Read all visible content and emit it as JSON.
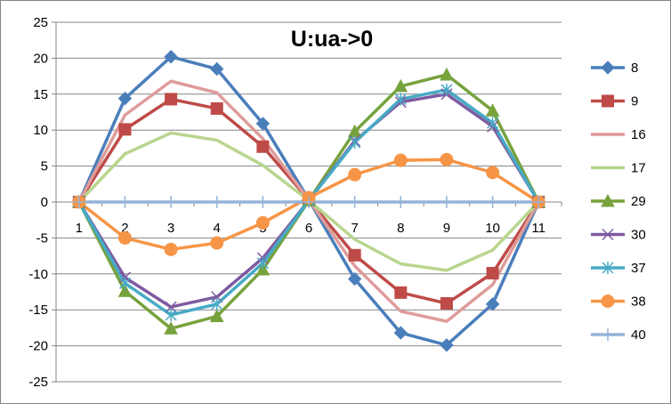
{
  "chart_data": {
    "type": "line",
    "title": "U:ua->0",
    "xlabel": "",
    "ylabel": "",
    "categories": [
      "1",
      "2",
      "3",
      "4",
      "5",
      "6",
      "7",
      "8",
      "9",
      "10",
      "11"
    ],
    "ylim": [
      -25,
      25
    ],
    "yticks": [
      -25,
      -20,
      -15,
      -10,
      -5,
      0,
      5,
      10,
      15,
      20,
      25
    ],
    "grid": "horizontal",
    "legend": "right",
    "series": [
      {
        "name": "8",
        "color": "#4A7EBB",
        "marker": "diamond",
        "values": [
          0,
          14.4,
          20.2,
          18.5,
          10.9,
          0.3,
          -10.7,
          -18.2,
          -19.9,
          -14.2,
          0
        ]
      },
      {
        "name": "9",
        "color": "#BE4B48",
        "marker": "square",
        "values": [
          0,
          10.1,
          14.3,
          13.0,
          7.7,
          0.3,
          -7.4,
          -12.6,
          -14.1,
          -9.9,
          0
        ]
      },
      {
        "name": "16",
        "color": "#DE9C9A",
        "marker": "none",
        "values": [
          0,
          12.1,
          16.8,
          15.2,
          8.8,
          0.3,
          -8.9,
          -15.2,
          -16.6,
          -11.5,
          0
        ]
      },
      {
        "name": "17",
        "color": "#B9D58E",
        "marker": "none",
        "values": [
          0,
          6.7,
          9.6,
          8.6,
          5.1,
          0.2,
          -5.2,
          -8.6,
          -9.5,
          -6.7,
          0
        ]
      },
      {
        "name": "29",
        "color": "#77A23C",
        "marker": "triangle",
        "values": [
          0,
          -12.4,
          -17.6,
          -15.9,
          -9.4,
          0.2,
          9.8,
          16.1,
          17.7,
          12.7,
          0
        ]
      },
      {
        "name": "30",
        "color": "#7E5AA0",
        "marker": "x",
        "values": [
          0,
          -10.5,
          -14.6,
          -13.2,
          -7.8,
          0.2,
          8.5,
          13.9,
          15.0,
          10.5,
          0
        ]
      },
      {
        "name": "37",
        "color": "#46AAC5",
        "marker": "star",
        "values": [
          0,
          -11.3,
          -15.7,
          -14.2,
          -8.5,
          0.2,
          8.3,
          14.3,
          15.6,
          11.0,
          0
        ]
      },
      {
        "name": "38",
        "color": "#F69546",
        "marker": "circle",
        "values": [
          0,
          -5.0,
          -6.6,
          -5.7,
          -2.9,
          0.6,
          3.8,
          5.8,
          5.9,
          4.1,
          0
        ]
      },
      {
        "name": "40",
        "color": "#95B3D7",
        "marker": "plus",
        "values": [
          0,
          0,
          0,
          0,
          0,
          0,
          0,
          0,
          0,
          0,
          0
        ]
      }
    ]
  }
}
